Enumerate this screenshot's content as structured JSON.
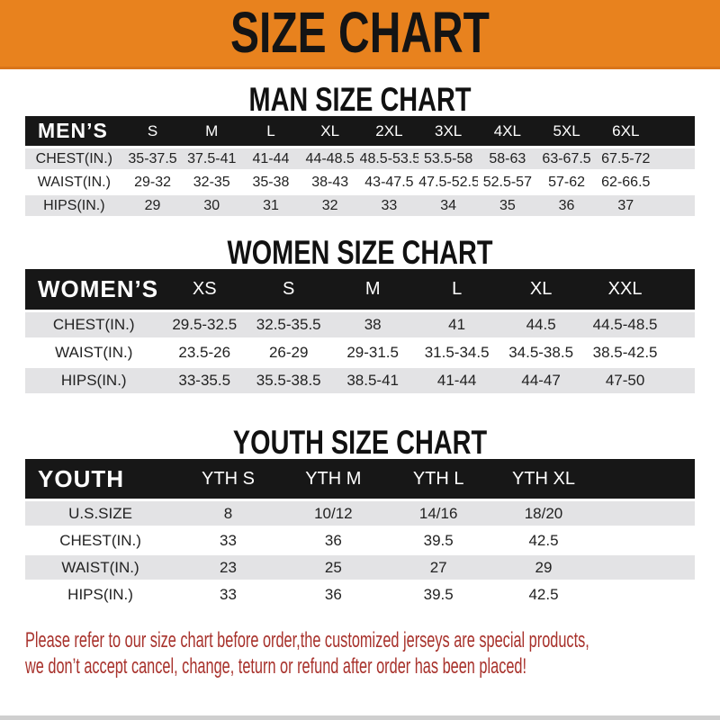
{
  "banner": {
    "title": "SIZE CHART"
  },
  "colors": {
    "banner_bg": "#e8821e",
    "header_bar_bg": "#171717",
    "row_stripe": "#e3e3e5",
    "footer_text": "#a8322c"
  },
  "sections": [
    {
      "id": "men",
      "title": "MAN SIZE CHART",
      "table": {
        "header": [
          "MEN’S",
          "S",
          "M",
          "L",
          "XL",
          "2XL",
          "3XL",
          "4XL",
          "5XL",
          "6XL"
        ],
        "rows": [
          [
            "CHEST(IN.)",
            "35-37.5",
            "37.5-41",
            "41-44",
            "44-48.5",
            "48.5-53.5",
            "53.5-58",
            "58-63",
            "63-67.5",
            "67.5-72"
          ],
          [
            "WAIST(IN.)",
            "29-32",
            "32-35",
            "35-38",
            "38-43",
            "43-47.5",
            "47.5-52.5",
            "52.5-57",
            "57-62",
            "62-66.5"
          ],
          [
            "HIPS(IN.)",
            "29",
            "30",
            "31",
            "32",
            "33",
            "34",
            "35",
            "36",
            "37"
          ]
        ]
      }
    },
    {
      "id": "women",
      "title": "WOMEN SIZE CHART",
      "table": {
        "header": [
          "WOMEN’S",
          "XS",
          "S",
          "M",
          "L",
          "XL",
          "XXL"
        ],
        "rows": [
          [
            "CHEST(IN.)",
            "29.5-32.5",
            "32.5-35.5",
            "38",
            "41",
            "44.5",
            "44.5-48.5"
          ],
          [
            "WAIST(IN.)",
            "23.5-26",
            "26-29",
            "29-31.5",
            "31.5-34.5",
            "34.5-38.5",
            "38.5-42.5"
          ],
          [
            "HIPS(IN.)",
            "33-35.5",
            "35.5-38.5",
            "38.5-41",
            "41-44",
            "44-47",
            "47-50"
          ]
        ]
      }
    },
    {
      "id": "youth",
      "title": "YOUTH SIZE CHART",
      "table": {
        "header": [
          "YOUTH",
          "YTH S",
          "YTH M",
          "YTH L",
          "YTH XL"
        ],
        "rows": [
          [
            "U.S.SIZE",
            "8",
            "10/12",
            "14/16",
            "18/20"
          ],
          [
            "CHEST(IN.)",
            "33",
            "36",
            "39.5",
            "42.5"
          ],
          [
            "WAIST(IN.)",
            "23",
            "25",
            "27",
            "29"
          ],
          [
            "HIPS(IN.)",
            "33",
            "36",
            "39.5",
            "42.5"
          ]
        ]
      }
    }
  ],
  "footer": {
    "line1": "Please refer to our size chart before order,the customized jerseys are special products,",
    "line2": "we don’t accept cancel, change, teturn or refund after order has been placed!"
  }
}
